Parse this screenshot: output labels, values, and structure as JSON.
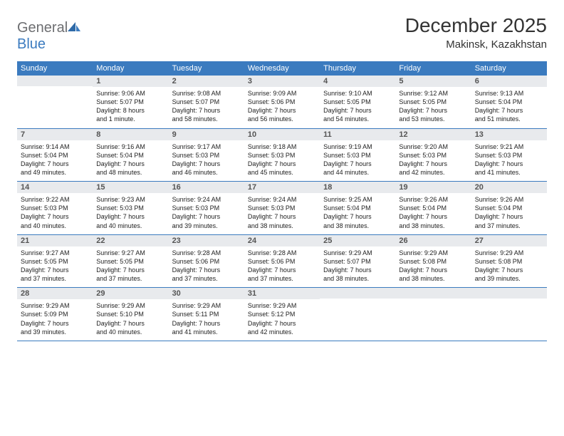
{
  "logo": {
    "text_gray": "General",
    "text_blue": "Blue"
  },
  "title": "December 2025",
  "subtitle": "Makinsk, Kazakhstan",
  "colors": {
    "header_bg": "#3b7bbf",
    "header_text": "#ffffff",
    "daynum_bg": "#e8eaed",
    "daynum_text": "#555555",
    "body_text": "#222222",
    "rule": "#3b7bbf",
    "logo_gray": "#6d6e71",
    "logo_blue": "#3b7bbf"
  },
  "weekdays": [
    "Sunday",
    "Monday",
    "Tuesday",
    "Wednesday",
    "Thursday",
    "Friday",
    "Saturday"
  ],
  "weeks": [
    [
      {
        "day": "",
        "lines": []
      },
      {
        "day": "1",
        "lines": [
          "Sunrise: 9:06 AM",
          "Sunset: 5:07 PM",
          "Daylight: 8 hours",
          "and 1 minute."
        ]
      },
      {
        "day": "2",
        "lines": [
          "Sunrise: 9:08 AM",
          "Sunset: 5:07 PM",
          "Daylight: 7 hours",
          "and 58 minutes."
        ]
      },
      {
        "day": "3",
        "lines": [
          "Sunrise: 9:09 AM",
          "Sunset: 5:06 PM",
          "Daylight: 7 hours",
          "and 56 minutes."
        ]
      },
      {
        "day": "4",
        "lines": [
          "Sunrise: 9:10 AM",
          "Sunset: 5:05 PM",
          "Daylight: 7 hours",
          "and 54 minutes."
        ]
      },
      {
        "day": "5",
        "lines": [
          "Sunrise: 9:12 AM",
          "Sunset: 5:05 PM",
          "Daylight: 7 hours",
          "and 53 minutes."
        ]
      },
      {
        "day": "6",
        "lines": [
          "Sunrise: 9:13 AM",
          "Sunset: 5:04 PM",
          "Daylight: 7 hours",
          "and 51 minutes."
        ]
      }
    ],
    [
      {
        "day": "7",
        "lines": [
          "Sunrise: 9:14 AM",
          "Sunset: 5:04 PM",
          "Daylight: 7 hours",
          "and 49 minutes."
        ]
      },
      {
        "day": "8",
        "lines": [
          "Sunrise: 9:16 AM",
          "Sunset: 5:04 PM",
          "Daylight: 7 hours",
          "and 48 minutes."
        ]
      },
      {
        "day": "9",
        "lines": [
          "Sunrise: 9:17 AM",
          "Sunset: 5:03 PM",
          "Daylight: 7 hours",
          "and 46 minutes."
        ]
      },
      {
        "day": "10",
        "lines": [
          "Sunrise: 9:18 AM",
          "Sunset: 5:03 PM",
          "Daylight: 7 hours",
          "and 45 minutes."
        ]
      },
      {
        "day": "11",
        "lines": [
          "Sunrise: 9:19 AM",
          "Sunset: 5:03 PM",
          "Daylight: 7 hours",
          "and 44 minutes."
        ]
      },
      {
        "day": "12",
        "lines": [
          "Sunrise: 9:20 AM",
          "Sunset: 5:03 PM",
          "Daylight: 7 hours",
          "and 42 minutes."
        ]
      },
      {
        "day": "13",
        "lines": [
          "Sunrise: 9:21 AM",
          "Sunset: 5:03 PM",
          "Daylight: 7 hours",
          "and 41 minutes."
        ]
      }
    ],
    [
      {
        "day": "14",
        "lines": [
          "Sunrise: 9:22 AM",
          "Sunset: 5:03 PM",
          "Daylight: 7 hours",
          "and 40 minutes."
        ]
      },
      {
        "day": "15",
        "lines": [
          "Sunrise: 9:23 AM",
          "Sunset: 5:03 PM",
          "Daylight: 7 hours",
          "and 40 minutes."
        ]
      },
      {
        "day": "16",
        "lines": [
          "Sunrise: 9:24 AM",
          "Sunset: 5:03 PM",
          "Daylight: 7 hours",
          "and 39 minutes."
        ]
      },
      {
        "day": "17",
        "lines": [
          "Sunrise: 9:24 AM",
          "Sunset: 5:03 PM",
          "Daylight: 7 hours",
          "and 38 minutes."
        ]
      },
      {
        "day": "18",
        "lines": [
          "Sunrise: 9:25 AM",
          "Sunset: 5:04 PM",
          "Daylight: 7 hours",
          "and 38 minutes."
        ]
      },
      {
        "day": "19",
        "lines": [
          "Sunrise: 9:26 AM",
          "Sunset: 5:04 PM",
          "Daylight: 7 hours",
          "and 38 minutes."
        ]
      },
      {
        "day": "20",
        "lines": [
          "Sunrise: 9:26 AM",
          "Sunset: 5:04 PM",
          "Daylight: 7 hours",
          "and 37 minutes."
        ]
      }
    ],
    [
      {
        "day": "21",
        "lines": [
          "Sunrise: 9:27 AM",
          "Sunset: 5:05 PM",
          "Daylight: 7 hours",
          "and 37 minutes."
        ]
      },
      {
        "day": "22",
        "lines": [
          "Sunrise: 9:27 AM",
          "Sunset: 5:05 PM",
          "Daylight: 7 hours",
          "and 37 minutes."
        ]
      },
      {
        "day": "23",
        "lines": [
          "Sunrise: 9:28 AM",
          "Sunset: 5:06 PM",
          "Daylight: 7 hours",
          "and 37 minutes."
        ]
      },
      {
        "day": "24",
        "lines": [
          "Sunrise: 9:28 AM",
          "Sunset: 5:06 PM",
          "Daylight: 7 hours",
          "and 37 minutes."
        ]
      },
      {
        "day": "25",
        "lines": [
          "Sunrise: 9:29 AM",
          "Sunset: 5:07 PM",
          "Daylight: 7 hours",
          "and 38 minutes."
        ]
      },
      {
        "day": "26",
        "lines": [
          "Sunrise: 9:29 AM",
          "Sunset: 5:08 PM",
          "Daylight: 7 hours",
          "and 38 minutes."
        ]
      },
      {
        "day": "27",
        "lines": [
          "Sunrise: 9:29 AM",
          "Sunset: 5:08 PM",
          "Daylight: 7 hours",
          "and 39 minutes."
        ]
      }
    ],
    [
      {
        "day": "28",
        "lines": [
          "Sunrise: 9:29 AM",
          "Sunset: 5:09 PM",
          "Daylight: 7 hours",
          "and 39 minutes."
        ]
      },
      {
        "day": "29",
        "lines": [
          "Sunrise: 9:29 AM",
          "Sunset: 5:10 PM",
          "Daylight: 7 hours",
          "and 40 minutes."
        ]
      },
      {
        "day": "30",
        "lines": [
          "Sunrise: 9:29 AM",
          "Sunset: 5:11 PM",
          "Daylight: 7 hours",
          "and 41 minutes."
        ]
      },
      {
        "day": "31",
        "lines": [
          "Sunrise: 9:29 AM",
          "Sunset: 5:12 PM",
          "Daylight: 7 hours",
          "and 42 minutes."
        ]
      },
      {
        "day": "",
        "lines": []
      },
      {
        "day": "",
        "lines": []
      },
      {
        "day": "",
        "lines": []
      }
    ]
  ]
}
